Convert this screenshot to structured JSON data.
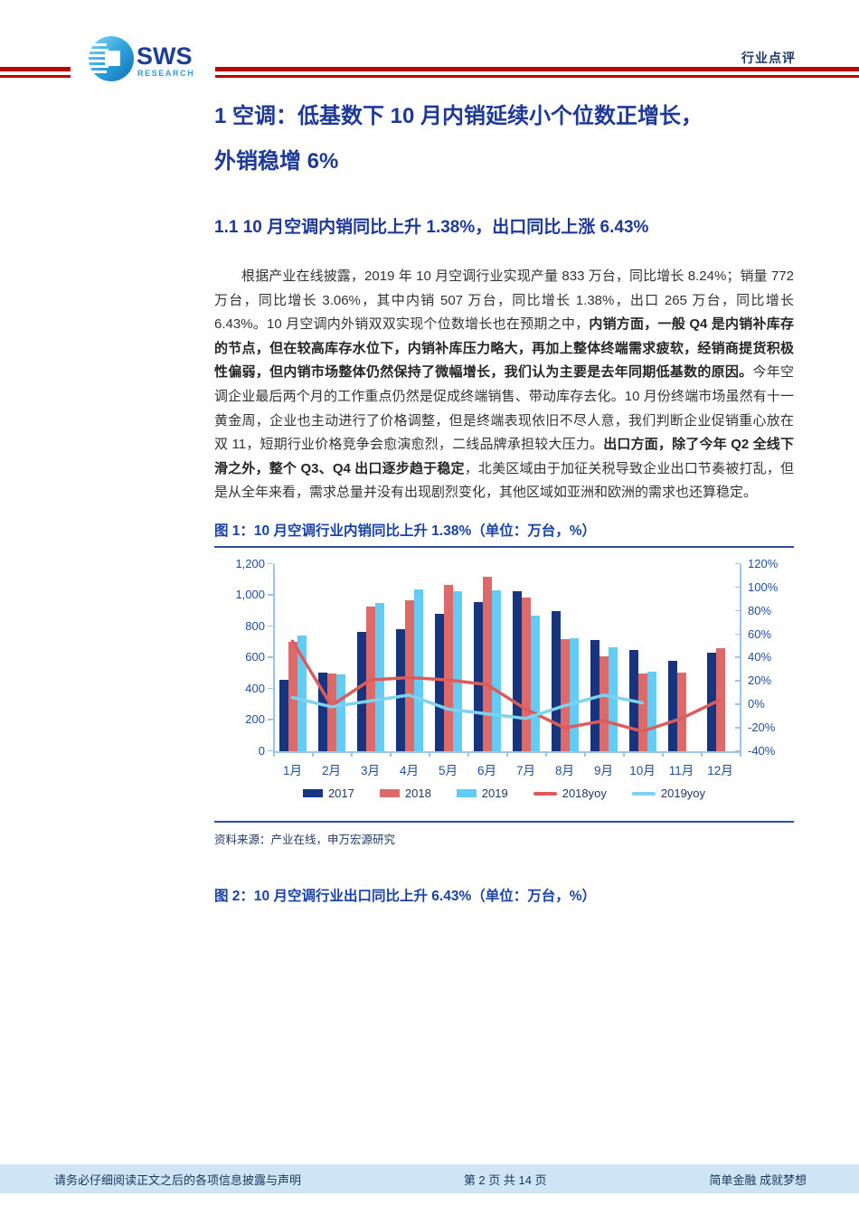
{
  "header": {
    "logo_main": "SWS",
    "logo_sub": "RESEARCH",
    "page_type": "行业点评"
  },
  "headings": {
    "h1_lines": [
      "1 空调：低基数下 10 月内销延续小个位数正增长，",
      "外销稳增 6%"
    ],
    "h2": "1.1 10 月空调内销同比上升 1.38%，出口同比上涨 6.43%"
  },
  "paragraph": {
    "segments": [
      {
        "bold": false,
        "text": "根据产业在线披露，2019 年 10 月空调行业实现产量 833 万台，同比增长 8.24%；销量 772 万台，同比增长 3.06%，其中内销 507 万台，同比增长 1.38%，出口 265 万台，同比增长 6.43%。10 月空调内外销双双实现个位数增长也在预期之中，"
      },
      {
        "bold": true,
        "text": "内销方面，一般 Q4 是内销补库存的节点，但在较高库存水位下，内销补库压力略大，再加上整体终端需求疲软，经销商提货积极性偏弱，但内销市场整体仍然保持了微幅增长，我们认为主要是去年同期低基数的原因。"
      },
      {
        "bold": false,
        "text": "今年空调企业最后两个月的工作重点仍然是促成终端销售、带动库存去化。10 月份终端市场虽然有十一黄金周，企业也主动进行了价格调整，但是终端表现依旧不尽人意，我们判断企业促销重心放在双 11，短期行业价格竞争会愈演愈烈，二线品牌承担较大压力。"
      },
      {
        "bold": true,
        "text": "出口方面，除了今年 Q2 全线下滑之外，整个 Q3、Q4 出口逐步趋于稳定"
      },
      {
        "bold": false,
        "text": "，北美区域由于加征关税导致企业出口节奏被打乱，但是从全年来看，需求总量并没有出现剧烈变化，其他区域如亚洲和欧洲的需求也还算稳定。"
      }
    ]
  },
  "figure1": {
    "title": "图 1：10 月空调行业内销同比上升 1.38%（单位：万台，%）",
    "source": "资料来源：产业在线，申万宏源研究"
  },
  "figure2": {
    "title": "图 2：10 月空调行业出口同比上升 6.43%（单位：万台，%）"
  },
  "footer": {
    "left": "请务必仔细阅读正文之后的各项信息披露与声明",
    "center": "第 2 页 共 14 页",
    "right": "简单金融 成就梦想"
  },
  "colors": {
    "accent_red": "#C00000",
    "heading_blue": "#1E3A96",
    "figure_rule_blue": "#2B50A8",
    "axis_text_blue": "#1F4E9C",
    "footer_bg": "#CFE5F5",
    "footer_text": "#17365D"
  },
  "chart_data": {
    "type": "bar",
    "title": "10 月空调行业内销同比上升 1.38%",
    "unit": "万台，%",
    "categories": [
      "1月",
      "2月",
      "3月",
      "4月",
      "5月",
      "6月",
      "7月",
      "8月",
      "9月",
      "10月",
      "11月",
      "12月"
    ],
    "series": [
      {
        "name": "2017",
        "type": "bar",
        "color": "#17357E",
        "axis": "left",
        "values": [
          455,
          505,
          765,
          785,
          880,
          955,
          1025,
          900,
          710,
          650,
          580,
          630
        ]
      },
      {
        "name": "2018",
        "type": "bar",
        "color": "#DD6A68",
        "axis": "left",
        "values": [
          700,
          500,
          925,
          965,
          1065,
          1120,
          985,
          720,
          610,
          500,
          505,
          662
        ]
      },
      {
        "name": "2019",
        "type": "bar",
        "color": "#63CCF5",
        "axis": "left",
        "values": [
          740,
          492,
          950,
          1040,
          1025,
          1030,
          867,
          727,
          665,
          507,
          null,
          null
        ]
      },
      {
        "name": "2018yoy",
        "type": "line",
        "color": "#DD5B5B",
        "axis": "right",
        "values": [
          54,
          -1,
          21,
          23,
          21,
          17,
          -4,
          -20,
          -14,
          -23,
          -12,
          4
        ]
      },
      {
        "name": "2019yoy",
        "type": "line",
        "color": "#7CD3F2",
        "axis": "right",
        "values": [
          6,
          -2,
          3,
          8,
          -4,
          -8,
          -12,
          -1,
          8,
          1.4,
          null,
          null
        ]
      }
    ],
    "left_axis": {
      "min": 0,
      "max": 1200,
      "step": 200,
      "format": "thousands"
    },
    "right_axis": {
      "min": -40,
      "max": 120,
      "step": 20,
      "suffix": "%"
    },
    "grid": false,
    "legend_position": "bottom"
  }
}
